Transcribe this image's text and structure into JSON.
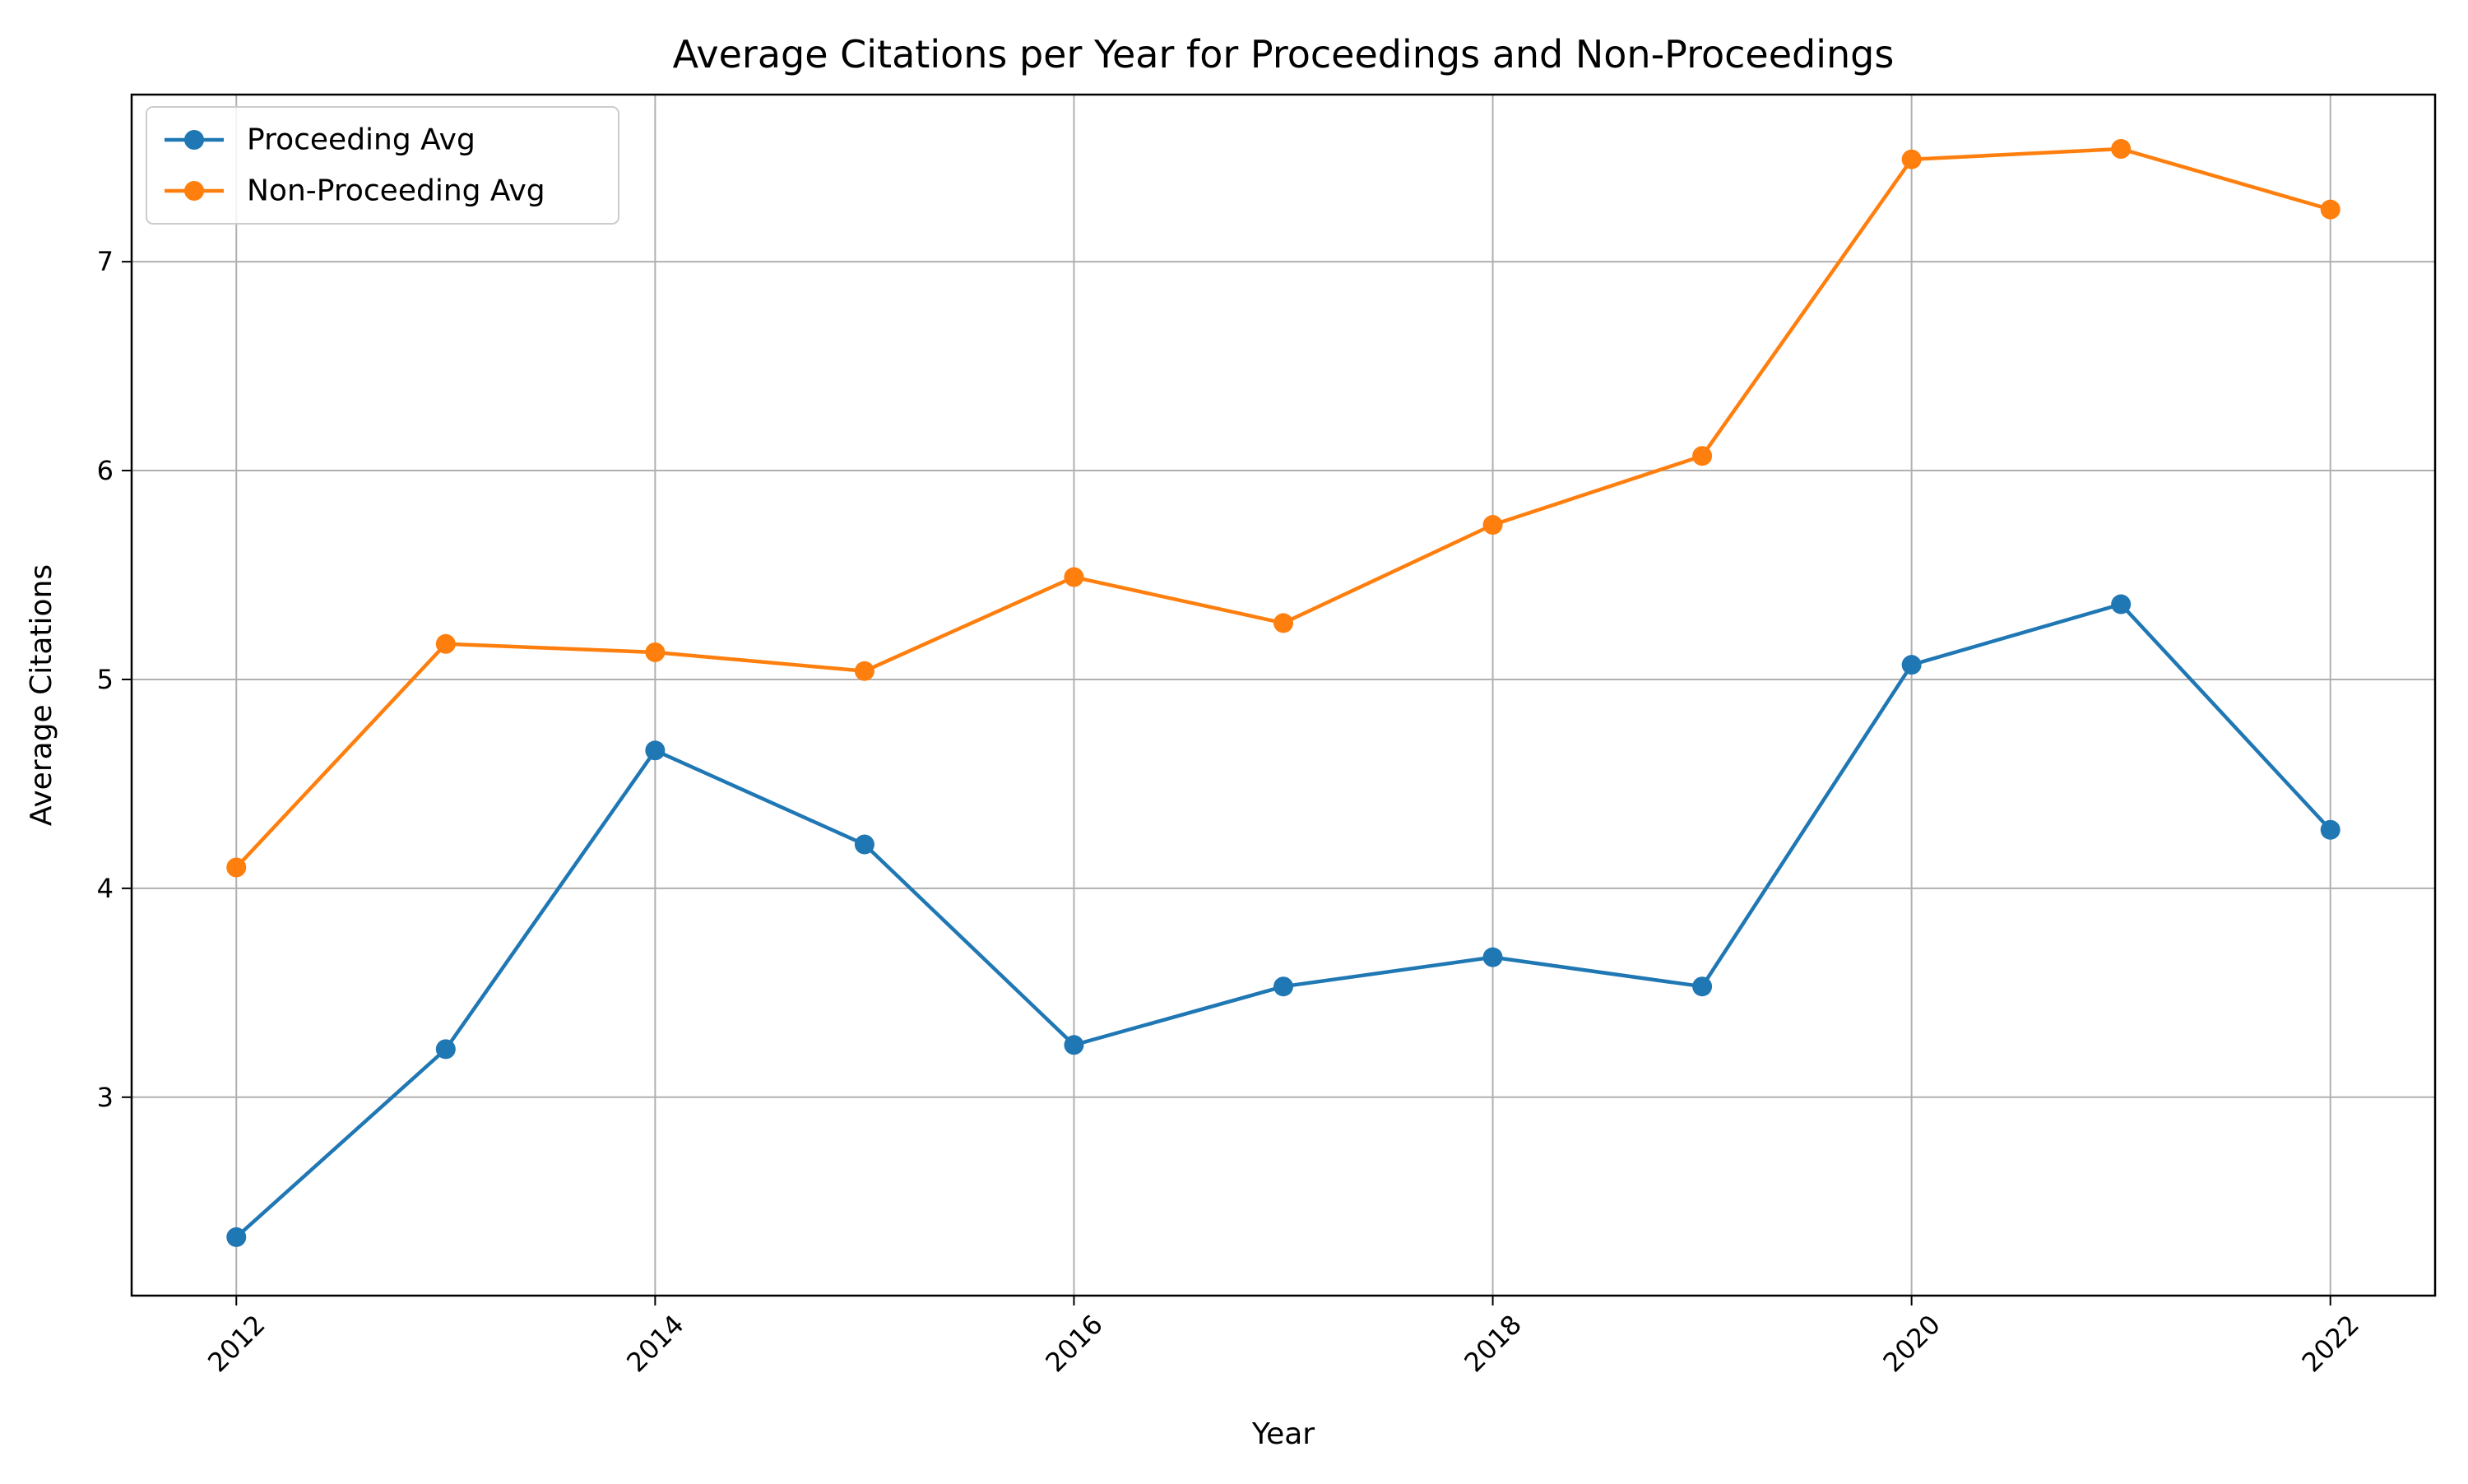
{
  "chart_data": {
    "type": "line",
    "title": "Average Citations per Year for Proceedings and Non-Proceedings",
    "xlabel": "Year",
    "ylabel": "Average Citations",
    "x": [
      2012,
      2013,
      2014,
      2015,
      2016,
      2017,
      2018,
      2019,
      2020,
      2021,
      2022
    ],
    "xticks": [
      "2012",
      "2014",
      "2016",
      "2018",
      "2020",
      "2022"
    ],
    "yticks": [
      "3",
      "4",
      "5",
      "6",
      "7"
    ],
    "xlim": [
      2011.5,
      2022.5
    ],
    "ylim": [
      2.05,
      7.8
    ],
    "grid": true,
    "legend_position": "top-left",
    "series": [
      {
        "name": "Proceeding Avg",
        "color": "#1f77b4",
        "marker": "circle",
        "values": [
          2.33,
          3.23,
          4.66,
          4.21,
          3.25,
          3.53,
          3.67,
          3.53,
          5.07,
          5.36,
          4.28
        ]
      },
      {
        "name": "Non-Proceeding Avg",
        "color": "#ff7f0e",
        "marker": "circle",
        "values": [
          4.1,
          5.17,
          5.13,
          5.04,
          5.49,
          5.27,
          5.74,
          6.07,
          7.49,
          7.54,
          7.25
        ]
      }
    ]
  }
}
